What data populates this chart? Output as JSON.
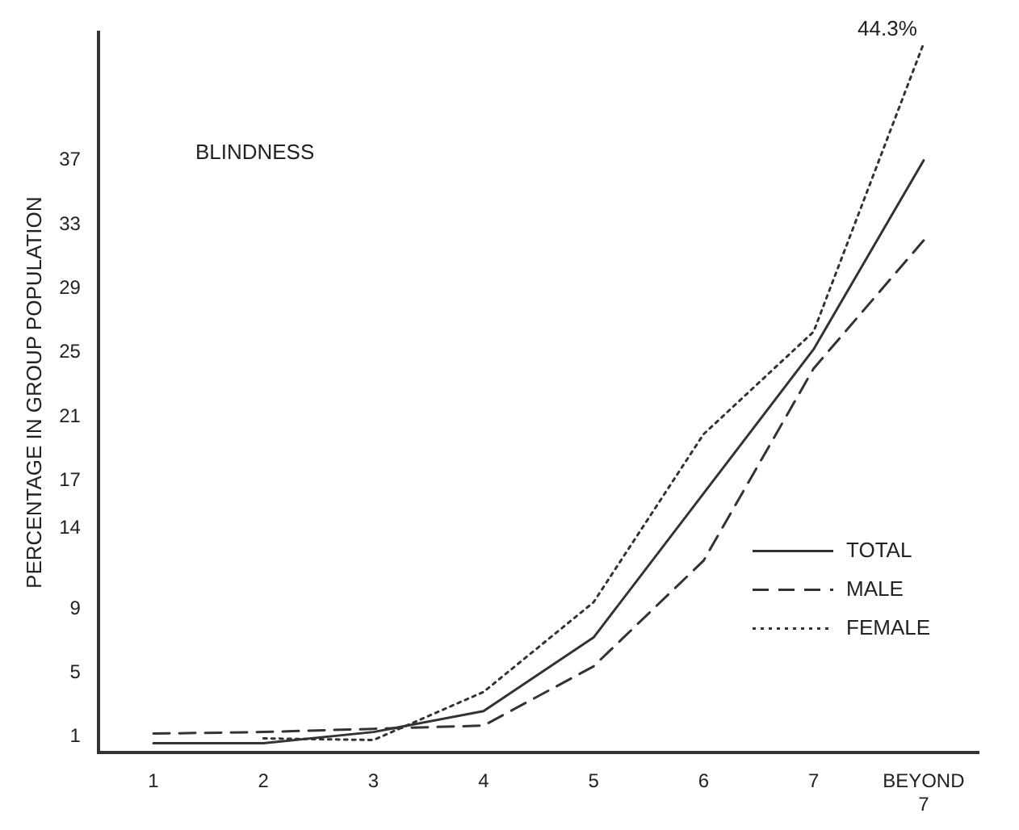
{
  "chart_data": {
    "type": "line",
    "ylabel": "PERCENTAGE IN GROUP POPULATION",
    "annotations": [
      "BLINDNESS"
    ],
    "categories": [
      "1",
      "2",
      "3",
      "4",
      "5",
      "6",
      "7",
      "BEYOND 7"
    ],
    "ylim": [
      0,
      45
    ],
    "yticks": [
      1,
      5,
      9,
      14,
      17,
      21,
      25,
      29,
      33,
      37
    ],
    "grid": false,
    "legend": "right",
    "marker": "none",
    "series": [
      {
        "name": "TOTAL",
        "color": "#333333",
        "line_style": "solid",
        "values": [
          0.6,
          0.6,
          1.3,
          2.6,
          7.2,
          16.2,
          25.2,
          37
        ]
      },
      {
        "name": "MALE",
        "color": "#333333",
        "line_style": "dashed",
        "values": [
          1.2,
          1.3,
          1.5,
          1.7,
          5.4,
          12.0,
          24.0,
          32.0
        ]
      },
      {
        "name": "FEMALE",
        "color": "#333333",
        "line_style": "dotted",
        "values": [
          null,
          0.9,
          0.8,
          3.8,
          9.4,
          19.9,
          26.3,
          44.3
        ],
        "value_labels": [
          null,
          null,
          null,
          null,
          null,
          null,
          null,
          "44.3%"
        ]
      }
    ]
  }
}
